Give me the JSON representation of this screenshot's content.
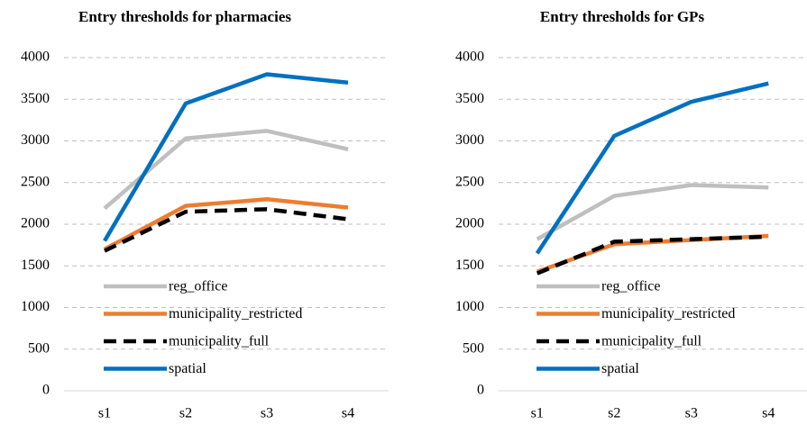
{
  "chart_data": [
    {
      "type": "line",
      "title": "Entry thresholds for pharmacies",
      "categories": [
        "s1",
        "s2",
        "s3",
        "s4"
      ],
      "series": [
        {
          "name": "reg_office",
          "color": "#bfbfbf",
          "dash": false,
          "values": [
            2190,
            3030,
            3120,
            2900
          ]
        },
        {
          "name": "municipality_restricted",
          "color": "#ed7d31",
          "dash": false,
          "values": [
            1700,
            2220,
            2300,
            2200
          ]
        },
        {
          "name": "municipality_full",
          "color": "#000000",
          "dash": true,
          "values": [
            1680,
            2150,
            2180,
            2060
          ]
        },
        {
          "name": "spatial",
          "color": "#0070c0",
          "dash": false,
          "values": [
            1800,
            3450,
            3800,
            3700
          ]
        }
      ],
      "ylim": [
        0,
        4000
      ],
      "yticks": [
        0,
        500,
        1000,
        1500,
        2000,
        2500,
        3000,
        3500,
        4000
      ],
      "grid": true,
      "legend": "lower left"
    },
    {
      "type": "line",
      "title": "Entry thresholds for GPs",
      "categories": [
        "s1",
        "s2",
        "s3",
        "s4"
      ],
      "series": [
        {
          "name": "reg_office",
          "color": "#bfbfbf",
          "dash": false,
          "values": [
            1820,
            2340,
            2470,
            2440
          ]
        },
        {
          "name": "municipality_restricted",
          "color": "#ed7d31",
          "dash": false,
          "values": [
            1430,
            1760,
            1810,
            1860
          ]
        },
        {
          "name": "municipality_full",
          "color": "#000000",
          "dash": true,
          "values": [
            1410,
            1790,
            1820,
            1850
          ]
        },
        {
          "name": "spatial",
          "color": "#0070c0",
          "dash": false,
          "values": [
            1650,
            3060,
            3470,
            3690
          ]
        }
      ],
      "ylim": [
        0,
        4000
      ],
      "yticks": [
        0,
        500,
        1000,
        1500,
        2000,
        2500,
        3000,
        3500,
        4000
      ],
      "grid": true,
      "legend": "lower left"
    }
  ]
}
